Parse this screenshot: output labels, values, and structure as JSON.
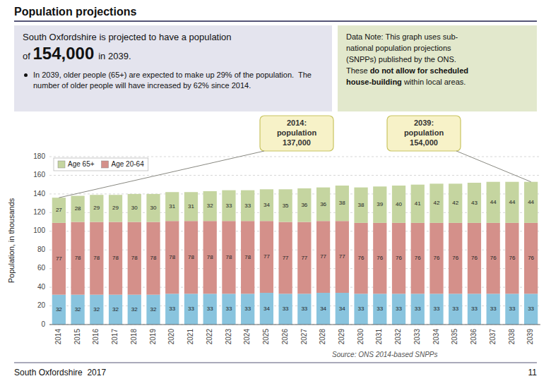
{
  "chart_data": {
    "type": "bar",
    "stacked": true,
    "title": "Population projections",
    "ylabel": "Population, in thousands",
    "categories": [
      "2014",
      "2015",
      "2016",
      "2017",
      "2018",
      "2019",
      "2020",
      "2021",
      "2022",
      "2023",
      "2024",
      "2025",
      "2026",
      "2027",
      "2028",
      "2029",
      "2030",
      "2031",
      "2032",
      "2033",
      "2034",
      "2035",
      "2036",
      "2037",
      "2038",
      "2039"
    ],
    "series": [
      {
        "color": "#89c4de",
        "values": [
          32,
          32,
          32,
          32,
          32,
          32,
          33,
          33,
          33,
          33,
          33,
          34,
          33,
          33,
          34,
          34,
          33,
          33,
          33,
          33,
          33,
          33,
          33,
          33,
          33,
          33
        ]
      },
      {
        "name": "Age 20-64",
        "color": "#d4908a",
        "values": [
          77,
          78,
          78,
          78,
          78,
          78,
          78,
          78,
          78,
          78,
          78,
          77,
          77,
          77,
          77,
          77,
          76,
          76,
          76,
          76,
          76,
          76,
          76,
          76,
          76,
          76
        ]
      },
      {
        "name": "Age 65+",
        "color": "#c5d5a0",
        "values": [
          27,
          28,
          29,
          29,
          30,
          30,
          31,
          31,
          32,
          33,
          33,
          34,
          35,
          36,
          36,
          38,
          38,
          39,
          40,
          41,
          42,
          42,
          43,
          44,
          44,
          44
        ]
      }
    ],
    "ylim": [
      0,
      180
    ],
    "yticks": [
      0,
      20,
      40,
      60,
      80,
      100,
      120,
      140,
      160,
      180
    ],
    "grid": true,
    "legend": "upper left",
    "data_labels": true,
    "annotations": [
      "South Oxfordshire is projected to have a population",
      "of ",
      "154,000",
      "in 2039.",
      "In 2039, older people (65+) are expected to make up 29% of the population.  The number of older people will have increased by 62% since 2014.",
      "Data Note: This graph uses sub-",
      "national population projections",
      "(SNPPs) published by the ONS.",
      "These ",
      "do not allow for scheduled",
      "house-building",
      " within local areas.",
      "2014:\npopulation\n137,000",
      "2039:\npopulation\n154,000",
      "Source: ONS 2014-based SNPPs",
      "South Oxfordshire  2017",
      "11"
    ]
  }
}
